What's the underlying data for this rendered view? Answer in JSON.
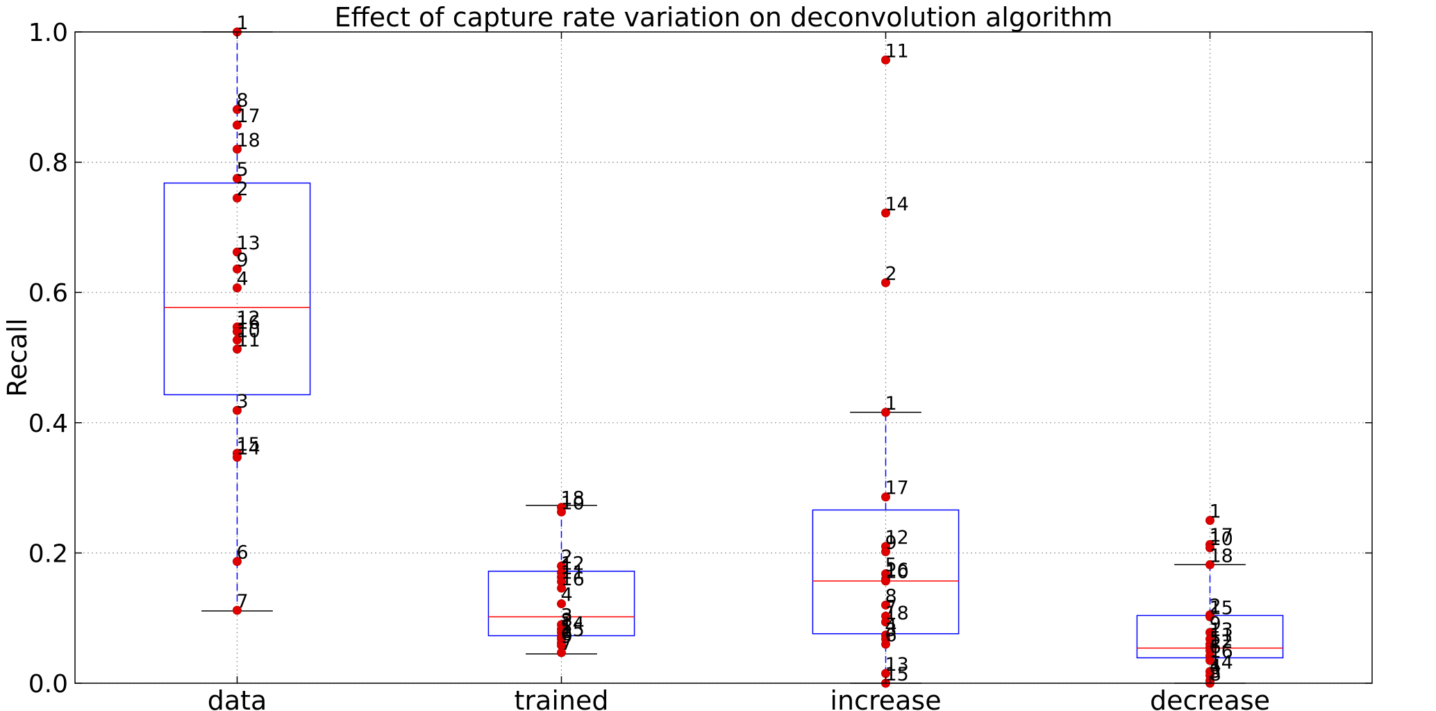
{
  "chart_data": {
    "type": "boxplot",
    "title": "Effect of capture rate variation on deconvolution algorithm",
    "xlabel": "",
    "ylabel": "Recall",
    "ylim": [
      0.0,
      1.0
    ],
    "yticks": [
      "0.0",
      "0.2",
      "0.4",
      "0.6",
      "0.8",
      "1.0"
    ],
    "grid": true,
    "categories": [
      "data",
      "trained",
      "increase",
      "decrease"
    ],
    "colors": {
      "box": "#0000ff",
      "median": "#ff0000",
      "whisker": "#0000ff",
      "cap": "#000000",
      "points": "#e00000",
      "grid": "#999999"
    },
    "boxes": [
      {
        "q1": 0.443,
        "median": 0.577,
        "q3": 0.768,
        "whislo": 0.111,
        "whishi": 1.0
      },
      {
        "q1": 0.073,
        "median": 0.102,
        "q3": 0.172,
        "whislo": 0.045,
        "whishi": 0.273
      },
      {
        "q1": 0.076,
        "median": 0.157,
        "q3": 0.266,
        "whislo": 0.0,
        "whishi": 0.416
      },
      {
        "q1": 0.039,
        "median": 0.054,
        "q3": 0.104,
        "whislo": 0.0,
        "whishi": 0.182
      }
    ],
    "points": [
      [
        {
          "label": "1",
          "y": 1.0
        },
        {
          "label": "8",
          "y": 0.881
        },
        {
          "label": "17",
          "y": 0.857
        },
        {
          "label": "18",
          "y": 0.82
        },
        {
          "label": "5",
          "y": 0.775
        },
        {
          "label": "2",
          "y": 0.745
        },
        {
          "label": "13",
          "y": 0.662
        },
        {
          "label": "9",
          "y": 0.636
        },
        {
          "label": "4",
          "y": 0.607
        },
        {
          "label": "12",
          "y": 0.547
        },
        {
          "label": "16",
          "y": 0.54
        },
        {
          "label": "10",
          "y": 0.527
        },
        {
          "label": "11",
          "y": 0.513
        },
        {
          "label": "3",
          "y": 0.419
        },
        {
          "label": "15",
          "y": 0.353
        },
        {
          "label": "14",
          "y": 0.347
        },
        {
          "label": "6",
          "y": 0.187
        },
        {
          "label": "7",
          "y": 0.112
        }
      ],
      [
        {
          "label": "18",
          "y": 0.27
        },
        {
          "label": "10",
          "y": 0.263
        },
        {
          "label": "2",
          "y": 0.18
        },
        {
          "label": "12",
          "y": 0.17
        },
        {
          "label": "1",
          "y": 0.163
        },
        {
          "label": "11",
          "y": 0.156
        },
        {
          "label": "16",
          "y": 0.146
        },
        {
          "label": "4",
          "y": 0.122
        },
        {
          "label": "3",
          "y": 0.09
        },
        {
          "label": "8",
          "y": 0.083
        },
        {
          "label": "14",
          "y": 0.078
        },
        {
          "label": "5",
          "y": 0.072
        },
        {
          "label": "15",
          "y": 0.068
        },
        {
          "label": "6",
          "y": 0.062
        },
        {
          "label": "9",
          "y": 0.058
        },
        {
          "label": "7",
          "y": 0.047
        }
      ],
      [
        {
          "label": "11",
          "y": 0.957
        },
        {
          "label": "14",
          "y": 0.722
        },
        {
          "label": "2",
          "y": 0.615
        },
        {
          "label": "1",
          "y": 0.416
        },
        {
          "label": "17",
          "y": 0.286
        },
        {
          "label": "12",
          "y": 0.21
        },
        {
          "label": "9",
          "y": 0.202
        },
        {
          "label": "5",
          "y": 0.168
        },
        {
          "label": "16",
          "y": 0.16
        },
        {
          "label": "10",
          "y": 0.157
        },
        {
          "label": "8",
          "y": 0.12
        },
        {
          "label": "7",
          "y": 0.103
        },
        {
          "label": "18",
          "y": 0.094
        },
        {
          "label": "4",
          "y": 0.074
        },
        {
          "label": "3",
          "y": 0.068
        },
        {
          "label": "6",
          "y": 0.06
        },
        {
          "label": "13",
          "y": 0.015
        },
        {
          "label": "15",
          "y": 0.0
        }
      ],
      [
        {
          "label": "1",
          "y": 0.25
        },
        {
          "label": "17",
          "y": 0.213
        },
        {
          "label": "10",
          "y": 0.208
        },
        {
          "label": "18",
          "y": 0.182
        },
        {
          "label": "2",
          "y": 0.105
        },
        {
          "label": "15",
          "y": 0.102
        },
        {
          "label": "9",
          "y": 0.078
        },
        {
          "label": "13",
          "y": 0.068
        },
        {
          "label": "11",
          "y": 0.06
        },
        {
          "label": "5",
          "y": 0.055
        },
        {
          "label": "12",
          "y": 0.05
        },
        {
          "label": "6",
          "y": 0.042
        },
        {
          "label": "16",
          "y": 0.035
        },
        {
          "label": "14",
          "y": 0.018
        },
        {
          "label": "4",
          "y": 0.012
        },
        {
          "label": "3",
          "y": 0.004
        },
        {
          "label": "8",
          "y": 0.0
        }
      ]
    ]
  }
}
